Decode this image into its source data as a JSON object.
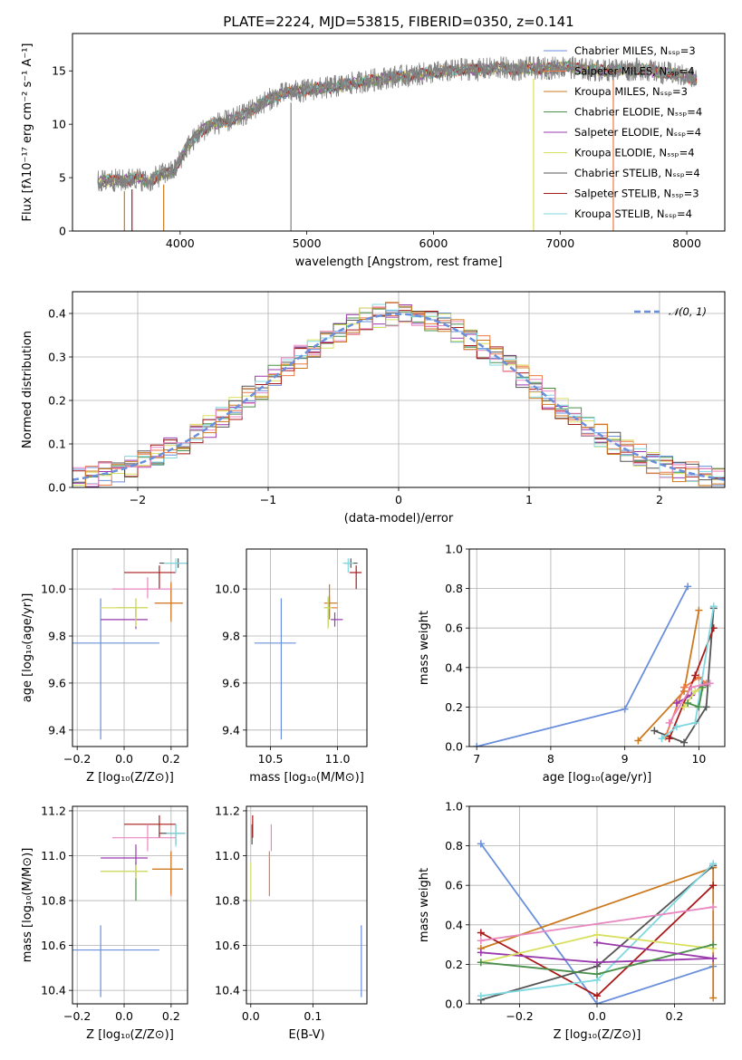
{
  "figure_title": "PLATE=2224, MJD=53815, FIBERID=0350, z=0.141",
  "colors": {
    "chabrier_miles": "#6a8fdc",
    "salpeter_miles": "#ee7744",
    "kroupa_miles": "#cc7a20",
    "chabrier_elodie": "#4a8f4a",
    "salpeter_elodie": "#9a3aad",
    "kroupa_elodie": "#d8e060",
    "chabrier_stelib": "#555555",
    "salpeter_stelib": "#aa1a1a",
    "kroupa_stelib": "#80d8e0",
    "pink": "#e888c0",
    "data": "#808080",
    "normal": "#6a8fdc"
  },
  "chart_data": [
    {
      "id": "spectrum",
      "type": "line",
      "title": "PLATE=2224, MJD=53815, FIBERID=0350, z=0.141",
      "xlabel": "wavelength [Angstrom, rest frame]",
      "ylabel": "Flux [fλ10⁻¹⁷ erg cm⁻² s⁻¹ A⁻¹]",
      "xlim": [
        3150,
        8300
      ],
      "ylim": [
        0,
        18.5
      ],
      "xticks": [
        4000,
        5000,
        6000,
        7000,
        8000
      ],
      "yticks": [
        0,
        5,
        10,
        15
      ],
      "grid": false,
      "legend_position": "right",
      "legend": [
        "Chabrier MILES, N_SSP=3",
        "Salpeter MILES, N_SSP=4",
        "Kroupa MILES, N_SSP=3",
        "Chabrier ELODIE, N_SSP=4",
        "Salpeter ELODIE, N_SSP=4",
        "Kroupa ELODIE, N_SSP=4",
        "Chabrier STELIB, N_SSP=4",
        "Salpeter STELIB, N_SSP=3",
        "Kroupa STELIB, N_SSP=4"
      ],
      "continuum": {
        "x": [
          3350,
          3450,
          3550,
          3650,
          3750,
          3850,
          3950,
          4050,
          4150,
          4250,
          4350,
          4450,
          4550,
          4650,
          4750,
          4850,
          4950,
          5050,
          5150,
          5250,
          5350,
          5450,
          5550,
          5650,
          5750,
          5850,
          5950,
          6050,
          6150,
          6250,
          6350,
          6450,
          6550,
          6650,
          6750,
          6850,
          6950,
          7050,
          7150,
          7250,
          7350,
          7450,
          7550,
          7650,
          7750,
          7850,
          7950,
          8080
        ],
        "y": [
          4.6,
          4.8,
          4.7,
          5.0,
          4.6,
          5.3,
          5.6,
          7.8,
          9.2,
          10.0,
          10.2,
          10.6,
          11.2,
          12.0,
          12.6,
          13.0,
          13.1,
          13.3,
          13.4,
          13.6,
          13.8,
          14.0,
          14.2,
          14.4,
          14.5,
          14.6,
          14.8,
          14.9,
          15.0,
          15.2,
          15.1,
          15.2,
          15.3,
          15.1,
          15.3,
          15.2,
          15.3,
          15.4,
          15.2,
          15.1,
          15.0,
          15.2,
          15.1,
          15.2,
          14.9,
          14.8,
          14.6,
          14.2
        ]
      }
    },
    {
      "id": "residuals",
      "type": "step",
      "xlabel": "(data-model)/error",
      "ylabel": "Normed distribution",
      "xlim": [
        -2.5,
        2.5
      ],
      "ylim": [
        0,
        0.45
      ],
      "xticks": [
        -2,
        -1,
        0,
        1,
        2
      ],
      "yticks": [
        0.0,
        0.1,
        0.2,
        0.3,
        0.4
      ],
      "grid": true,
      "legend_position": "top-right",
      "legend": [
        "𝒩(0, 1)"
      ],
      "bin_width": 0.1,
      "normal": {
        "mean": 0,
        "sigma": 1
      }
    },
    {
      "id": "age-vs-Z",
      "type": "errorbar",
      "xlabel": "Z [log₁₀(Z/Z⊙)]",
      "ylabel": "age  [log₁₀(age/yr)]",
      "xlim": [
        -0.22,
        0.27
      ],
      "ylim": [
        9.33,
        10.17
      ],
      "xticks": [
        -0.2,
        0.0,
        0.2
      ],
      "yticks": [
        9.4,
        9.6,
        9.8,
        10.0
      ],
      "grid": true,
      "points": [
        {
          "c": "chabrier_miles",
          "x": -0.1,
          "xe": [
            -0.31,
            0.15
          ],
          "y": 9.77,
          "ye": [
            9.36,
            9.96
          ]
        },
        {
          "c": "salpeter_miles",
          "x": 0.2,
          "xe": [
            0.13,
            0.25
          ],
          "y": 9.94,
          "ye": [
            9.87,
            10.02
          ]
        },
        {
          "c": "kroupa_miles",
          "x": 0.2,
          "xe": [
            0.13,
            0.25
          ],
          "y": 9.94,
          "ye": [
            9.86,
            10.03
          ]
        },
        {
          "c": "chabrier_elodie",
          "x": 0.05,
          "xe": [
            -0.03,
            0.1
          ],
          "y": 9.92,
          "ye": [
            9.88,
            9.96
          ]
        },
        {
          "c": "salpeter_elodie",
          "x": 0.05,
          "xe": [
            -0.1,
            0.1
          ],
          "y": 9.87,
          "ye": [
            9.83,
            9.92
          ]
        },
        {
          "c": "kroupa_elodie",
          "x": 0.05,
          "xe": [
            -0.1,
            0.1
          ],
          "y": 9.92,
          "ye": [
            9.84,
            9.96
          ]
        },
        {
          "c": "chabrier_stelib",
          "x": 0.23,
          "xe": [
            0.15,
            0.27
          ],
          "y": 10.11,
          "ye": [
            10.09,
            10.13
          ]
        },
        {
          "c": "salpeter_stelib",
          "x": 0.15,
          "xe": [
            0.0,
            0.22
          ],
          "y": 10.07,
          "ye": [
            10.0,
            10.1
          ]
        },
        {
          "c": "kroupa_stelib",
          "x": 0.22,
          "xe": [
            0.17,
            0.27
          ],
          "y": 10.11,
          "ye": [
            10.07,
            10.13
          ]
        },
        {
          "c": "pink",
          "x": 0.1,
          "xe": [
            -0.05,
            0.2
          ],
          "y": 10.0,
          "ye": [
            9.96,
            10.05
          ]
        }
      ]
    },
    {
      "id": "age-vs-mass",
      "type": "errorbar",
      "xlabel": "mass [log₁₀(M/M⊙)]",
      "ylabel": "",
      "xlim": [
        10.32,
        11.22
      ],
      "ylim": [
        9.33,
        10.17
      ],
      "xticks": [
        10.5,
        11.0
      ],
      "yticks": [
        9.4,
        9.6,
        9.8,
        10.0
      ],
      "grid": true,
      "points": [
        {
          "c": "chabrier_miles",
          "x": 10.58,
          "xe": [
            10.38,
            10.69
          ],
          "y": 9.77,
          "ye": [
            9.36,
            9.96
          ]
        },
        {
          "c": "salpeter_miles",
          "x": 10.94,
          "xe": [
            10.91,
            11.0
          ],
          "y": 9.92,
          "ye": [
            9.88,
            9.97
          ]
        },
        {
          "c": "kroupa_miles",
          "x": 10.94,
          "xe": [
            10.9,
            11.0
          ],
          "y": 9.94,
          "ye": [
            9.87,
            10.02
          ]
        },
        {
          "c": "chabrier_elodie",
          "x": 10.93,
          "xe": [
            10.9,
            10.96
          ],
          "y": 9.92,
          "ye": [
            9.84,
            9.96
          ]
        },
        {
          "c": "salpeter_elodie",
          "x": 10.98,
          "xe": [
            10.95,
            11.04
          ],
          "y": 9.87,
          "ye": [
            9.84,
            9.9
          ]
        },
        {
          "c": "kroupa_elodie",
          "x": 10.93,
          "xe": [
            10.9,
            10.96
          ],
          "y": 9.92,
          "ye": [
            9.83,
            9.97
          ]
        },
        {
          "c": "chabrier_stelib",
          "x": 11.1,
          "xe": [
            11.05,
            11.15
          ],
          "y": 10.11,
          "ye": [
            10.09,
            10.13
          ]
        },
        {
          "c": "salpeter_stelib",
          "x": 11.14,
          "xe": [
            11.09,
            11.18
          ],
          "y": 10.07,
          "ye": [
            10.0,
            10.1
          ]
        },
        {
          "c": "kroupa_stelib",
          "x": 11.08,
          "xe": [
            11.04,
            11.12
          ],
          "y": 10.11,
          "ye": [
            10.07,
            10.13
          ]
        }
      ]
    },
    {
      "id": "weight-vs-age",
      "type": "line",
      "xlabel": "age  [log₁₀(age/yr)]",
      "ylabel": "mass weight",
      "xlim": [
        6.9,
        10.35
      ],
      "ylim": [
        0,
        1.0
      ],
      "xticks": [
        7,
        8,
        9,
        10
      ],
      "yticks": [
        0.0,
        0.2,
        0.4,
        0.6,
        0.8,
        1.0
      ],
      "grid": true,
      "series": [
        {
          "c": "chabrier_miles",
          "x": [
            7.0,
            9.0,
            9.85
          ],
          "y": [
            0.0,
            0.19,
            0.81
          ]
        },
        {
          "c": "kroupa_miles",
          "x": [
            9.18,
            9.8,
            10.0
          ],
          "y": [
            0.03,
            0.28,
            0.69
          ]
        },
        {
          "c": "salpeter_miles",
          "x": [
            9.55,
            9.8,
            10.0,
            10.1
          ],
          "y": [
            0.05,
            0.3,
            0.35,
            0.32
          ]
        },
        {
          "c": "chabrier_stelib",
          "x": [
            9.4,
            9.8,
            10.1,
            10.2
          ],
          "y": [
            0.08,
            0.02,
            0.2,
            0.7
          ]
        },
        {
          "c": "salpeter_stelib",
          "x": [
            9.6,
            9.95,
            10.2
          ],
          "y": [
            0.04,
            0.36,
            0.6
          ]
        },
        {
          "c": "kroupa_stelib",
          "x": [
            9.5,
            9.7,
            9.95,
            10.2
          ],
          "y": [
            0.04,
            0.1,
            0.12,
            0.71
          ]
        },
        {
          "c": "salpeter_elodie",
          "x": [
            9.7,
            9.9,
            10.05
          ],
          "y": [
            0.22,
            0.26,
            0.31
          ]
        },
        {
          "c": "kroupa_elodie",
          "x": [
            9.8,
            9.95,
            10.05
          ],
          "y": [
            0.2,
            0.28,
            0.3
          ]
        },
        {
          "c": "chabrier_elodie",
          "x": [
            9.85,
            10.0,
            10.05
          ],
          "y": [
            0.22,
            0.2,
            0.3
          ]
        },
        {
          "c": "pink",
          "x": [
            9.6,
            9.9,
            10.15
          ],
          "y": [
            0.12,
            0.3,
            0.32
          ]
        }
      ]
    },
    {
      "id": "mass-vs-Z",
      "type": "errorbar",
      "xlabel": "Z [log₁₀(Z/Z⊙)]",
      "ylabel": "mass [log₁₀(M/M⊙)]",
      "xlim": [
        -0.22,
        0.27
      ],
      "ylim": [
        10.34,
        11.22
      ],
      "xticks": [
        -0.2,
        0.0,
        0.2
      ],
      "yticks": [
        10.4,
        10.6,
        10.8,
        11.0,
        11.2
      ],
      "grid": true,
      "points": [
        {
          "c": "chabrier_miles",
          "x": -0.1,
          "xe": [
            -0.31,
            0.15
          ],
          "y": 10.58,
          "ye": [
            10.37,
            10.69
          ]
        },
        {
          "c": "salpeter_miles",
          "x": 0.2,
          "xe": [
            0.12,
            0.25
          ],
          "y": 10.94,
          "ye": [
            10.82,
            11.02
          ]
        },
        {
          "c": "kroupa_miles",
          "x": 0.2,
          "xe": [
            0.12,
            0.25
          ],
          "y": 10.94,
          "ye": [
            10.83,
            11.02
          ]
        },
        {
          "c": "chabrier_elodie",
          "x": 0.05,
          "xe": [
            -0.1,
            0.1
          ],
          "y": 10.93,
          "ye": [
            10.8,
            10.97
          ]
        },
        {
          "c": "salpeter_elodie",
          "x": 0.05,
          "xe": [
            -0.1,
            0.1
          ],
          "y": 10.99,
          "ye": [
            10.91,
            11.05
          ]
        },
        {
          "c": "kroupa_elodie",
          "x": 0.05,
          "xe": [
            -0.1,
            0.1
          ],
          "y": 10.93,
          "ye": [
            10.9,
            10.96
          ]
        },
        {
          "c": "chabrier_stelib",
          "x": 0.22,
          "xe": [
            0.15,
            0.26
          ],
          "y": 11.1,
          "ye": [
            11.05,
            11.14
          ]
        },
        {
          "c": "salpeter_stelib",
          "x": 0.15,
          "xe": [
            0.0,
            0.22
          ],
          "y": 11.14,
          "ye": [
            11.08,
            11.18
          ]
        },
        {
          "c": "kroupa_stelib",
          "x": 0.22,
          "xe": [
            0.18,
            0.26
          ],
          "y": 11.1,
          "ye": [
            11.04,
            11.14
          ]
        },
        {
          "c": "pink",
          "x": 0.1,
          "xe": [
            -0.05,
            0.22
          ],
          "y": 11.08,
          "ye": [
            11.02,
            11.14
          ]
        }
      ]
    },
    {
      "id": "mass-vs-EBV",
      "type": "errorbar",
      "xlabel": "E(B-V)",
      "ylabel": "",
      "xlim": [
        -0.007,
        0.187
      ],
      "ylim": [
        10.34,
        11.22
      ],
      "xticks": [
        0.0,
        0.1
      ],
      "yticks": [
        10.4,
        10.6,
        10.8,
        11.0,
        11.2
      ],
      "grid": true,
      "points": [
        {
          "c": "chabrier_miles",
          "x": 0.178,
          "xe": [
            0.178,
            0.178
          ],
          "y": 10.58,
          "ye": [
            10.37,
            10.69
          ]
        },
        {
          "c": "salpeter_miles",
          "x": 0.03,
          "xe": [
            0.03,
            0.03
          ],
          "y": 10.94,
          "ye": [
            10.82,
            11.02
          ]
        },
        {
          "c": "pink",
          "x": 0.033,
          "xe": [
            0.033,
            0.033
          ],
          "y": 11.08,
          "ye": [
            11.02,
            11.14
          ]
        },
        {
          "c": "kroupa_elodie",
          "x": 0.0,
          "xe": [
            0.0,
            0.0
          ],
          "y": 10.93,
          "ye": [
            10.8,
            10.97
          ]
        },
        {
          "c": "chabrier_stelib",
          "x": 0.002,
          "xe": [
            0.002,
            0.002
          ],
          "y": 11.1,
          "ye": [
            11.05,
            11.14
          ]
        },
        {
          "c": "salpeter_stelib",
          "x": 0.003,
          "xe": [
            0.003,
            0.003
          ],
          "y": 11.14,
          "ye": [
            11.08,
            11.18
          ]
        }
      ]
    },
    {
      "id": "weight-vs-Z",
      "type": "line",
      "xlabel": "Z [log₁₀(Z/Z⊙)]",
      "ylabel": "mass weight",
      "xlim": [
        -0.33,
        0.33
      ],
      "ylim": [
        0,
        1.0
      ],
      "xticks": [
        -0.2,
        0.0,
        0.2
      ],
      "yticks": [
        0.0,
        0.2,
        0.4,
        0.6,
        0.8,
        1.0
      ],
      "grid": true,
      "series": [
        {
          "c": "chabrier_miles",
          "x": [
            -0.3,
            0.0,
            0.3
          ],
          "y": [
            0.81,
            0.0,
            0.19
          ]
        },
        {
          "c": "kroupa_miles",
          "x": [
            -0.3,
            0.3
          ],
          "y": [
            0.28,
            0.69
          ]
        },
        {
          "c": "kroupa_miles",
          "x": [
            0.3,
            0.3
          ],
          "y": [
            0.03,
            0.69
          ]
        },
        {
          "c": "salpeter_stelib",
          "x": [
            -0.3,
            0.0,
            0.3
          ],
          "y": [
            0.36,
            0.04,
            0.6
          ]
        },
        {
          "c": "chabrier_stelib",
          "x": [
            -0.3,
            0.0,
            0.3
          ],
          "y": [
            0.02,
            0.19,
            0.7
          ]
        },
        {
          "c": "kroupa_stelib",
          "x": [
            -0.3,
            0.0,
            0.3
          ],
          "y": [
            0.04,
            0.12,
            0.71
          ]
        },
        {
          "c": "salpeter_elodie",
          "x": [
            -0.3,
            0.0,
            0.3
          ],
          "y": [
            0.26,
            0.21,
            0.23
          ]
        },
        {
          "c": "pink",
          "x": [
            -0.3,
            0.3
          ],
          "y": [
            0.32,
            0.49
          ]
        },
        {
          "c": "kroupa_elodie",
          "x": [
            -0.3,
            0.0,
            0.3
          ],
          "y": [
            0.21,
            0.35,
            0.28
          ]
        },
        {
          "c": "chabrier_elodie",
          "x": [
            -0.3,
            0.0,
            0.3
          ],
          "y": [
            0.21,
            0.15,
            0.3
          ]
        },
        {
          "c": "salpeter_elodie",
          "x": [
            0.0,
            0.3
          ],
          "y": [
            0.31,
            0.23
          ]
        }
      ]
    }
  ]
}
